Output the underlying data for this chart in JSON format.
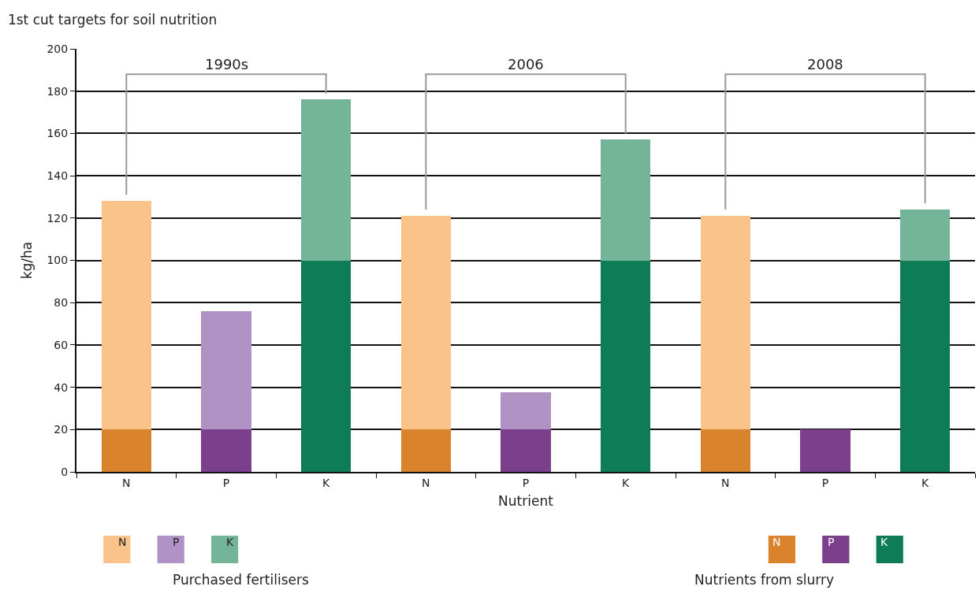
{
  "chart_data": {
    "type": "bar",
    "stacked": true,
    "title": "1st cut targets for soil nutrition",
    "xlabel": "Nutrient",
    "ylabel": "kg/ha",
    "categories": [
      "N",
      "P",
      "K",
      "N",
      "P",
      "K",
      "N",
      "P",
      "K"
    ],
    "series": [
      {
        "name": "Nutrients from slurry",
        "colors": [
          "#d9832c",
          "#7b3f8c",
          "#0e7d57",
          "#d9832c",
          "#7b3f8c",
          "#0e7d57",
          "#d9832c",
          "#7b3f8c",
          "#0e7d57"
        ],
        "values": [
          20,
          20,
          100,
          20,
          20,
          100,
          20,
          20,
          100
        ]
      },
      {
        "name": "Purchased fertilisers",
        "colors": [
          "#f9c38a",
          "#b092c5",
          "#74b499",
          "#f9c38a",
          "#b092c5",
          "#74b499",
          "#f9c38a",
          "#b092c5",
          "#74b499"
        ],
        "values": [
          108,
          56,
          76,
          101,
          17.5,
          57,
          101,
          0,
          24
        ]
      }
    ],
    "annotations": [
      "1990s",
      "2006",
      "2008"
    ],
    "ylim": [
      0,
      200
    ],
    "yticks": [
      0,
      20,
      40,
      60,
      80,
      100,
      120,
      140,
      160,
      180,
      200
    ],
    "grid": "y",
    "legend": "bottom"
  }
}
